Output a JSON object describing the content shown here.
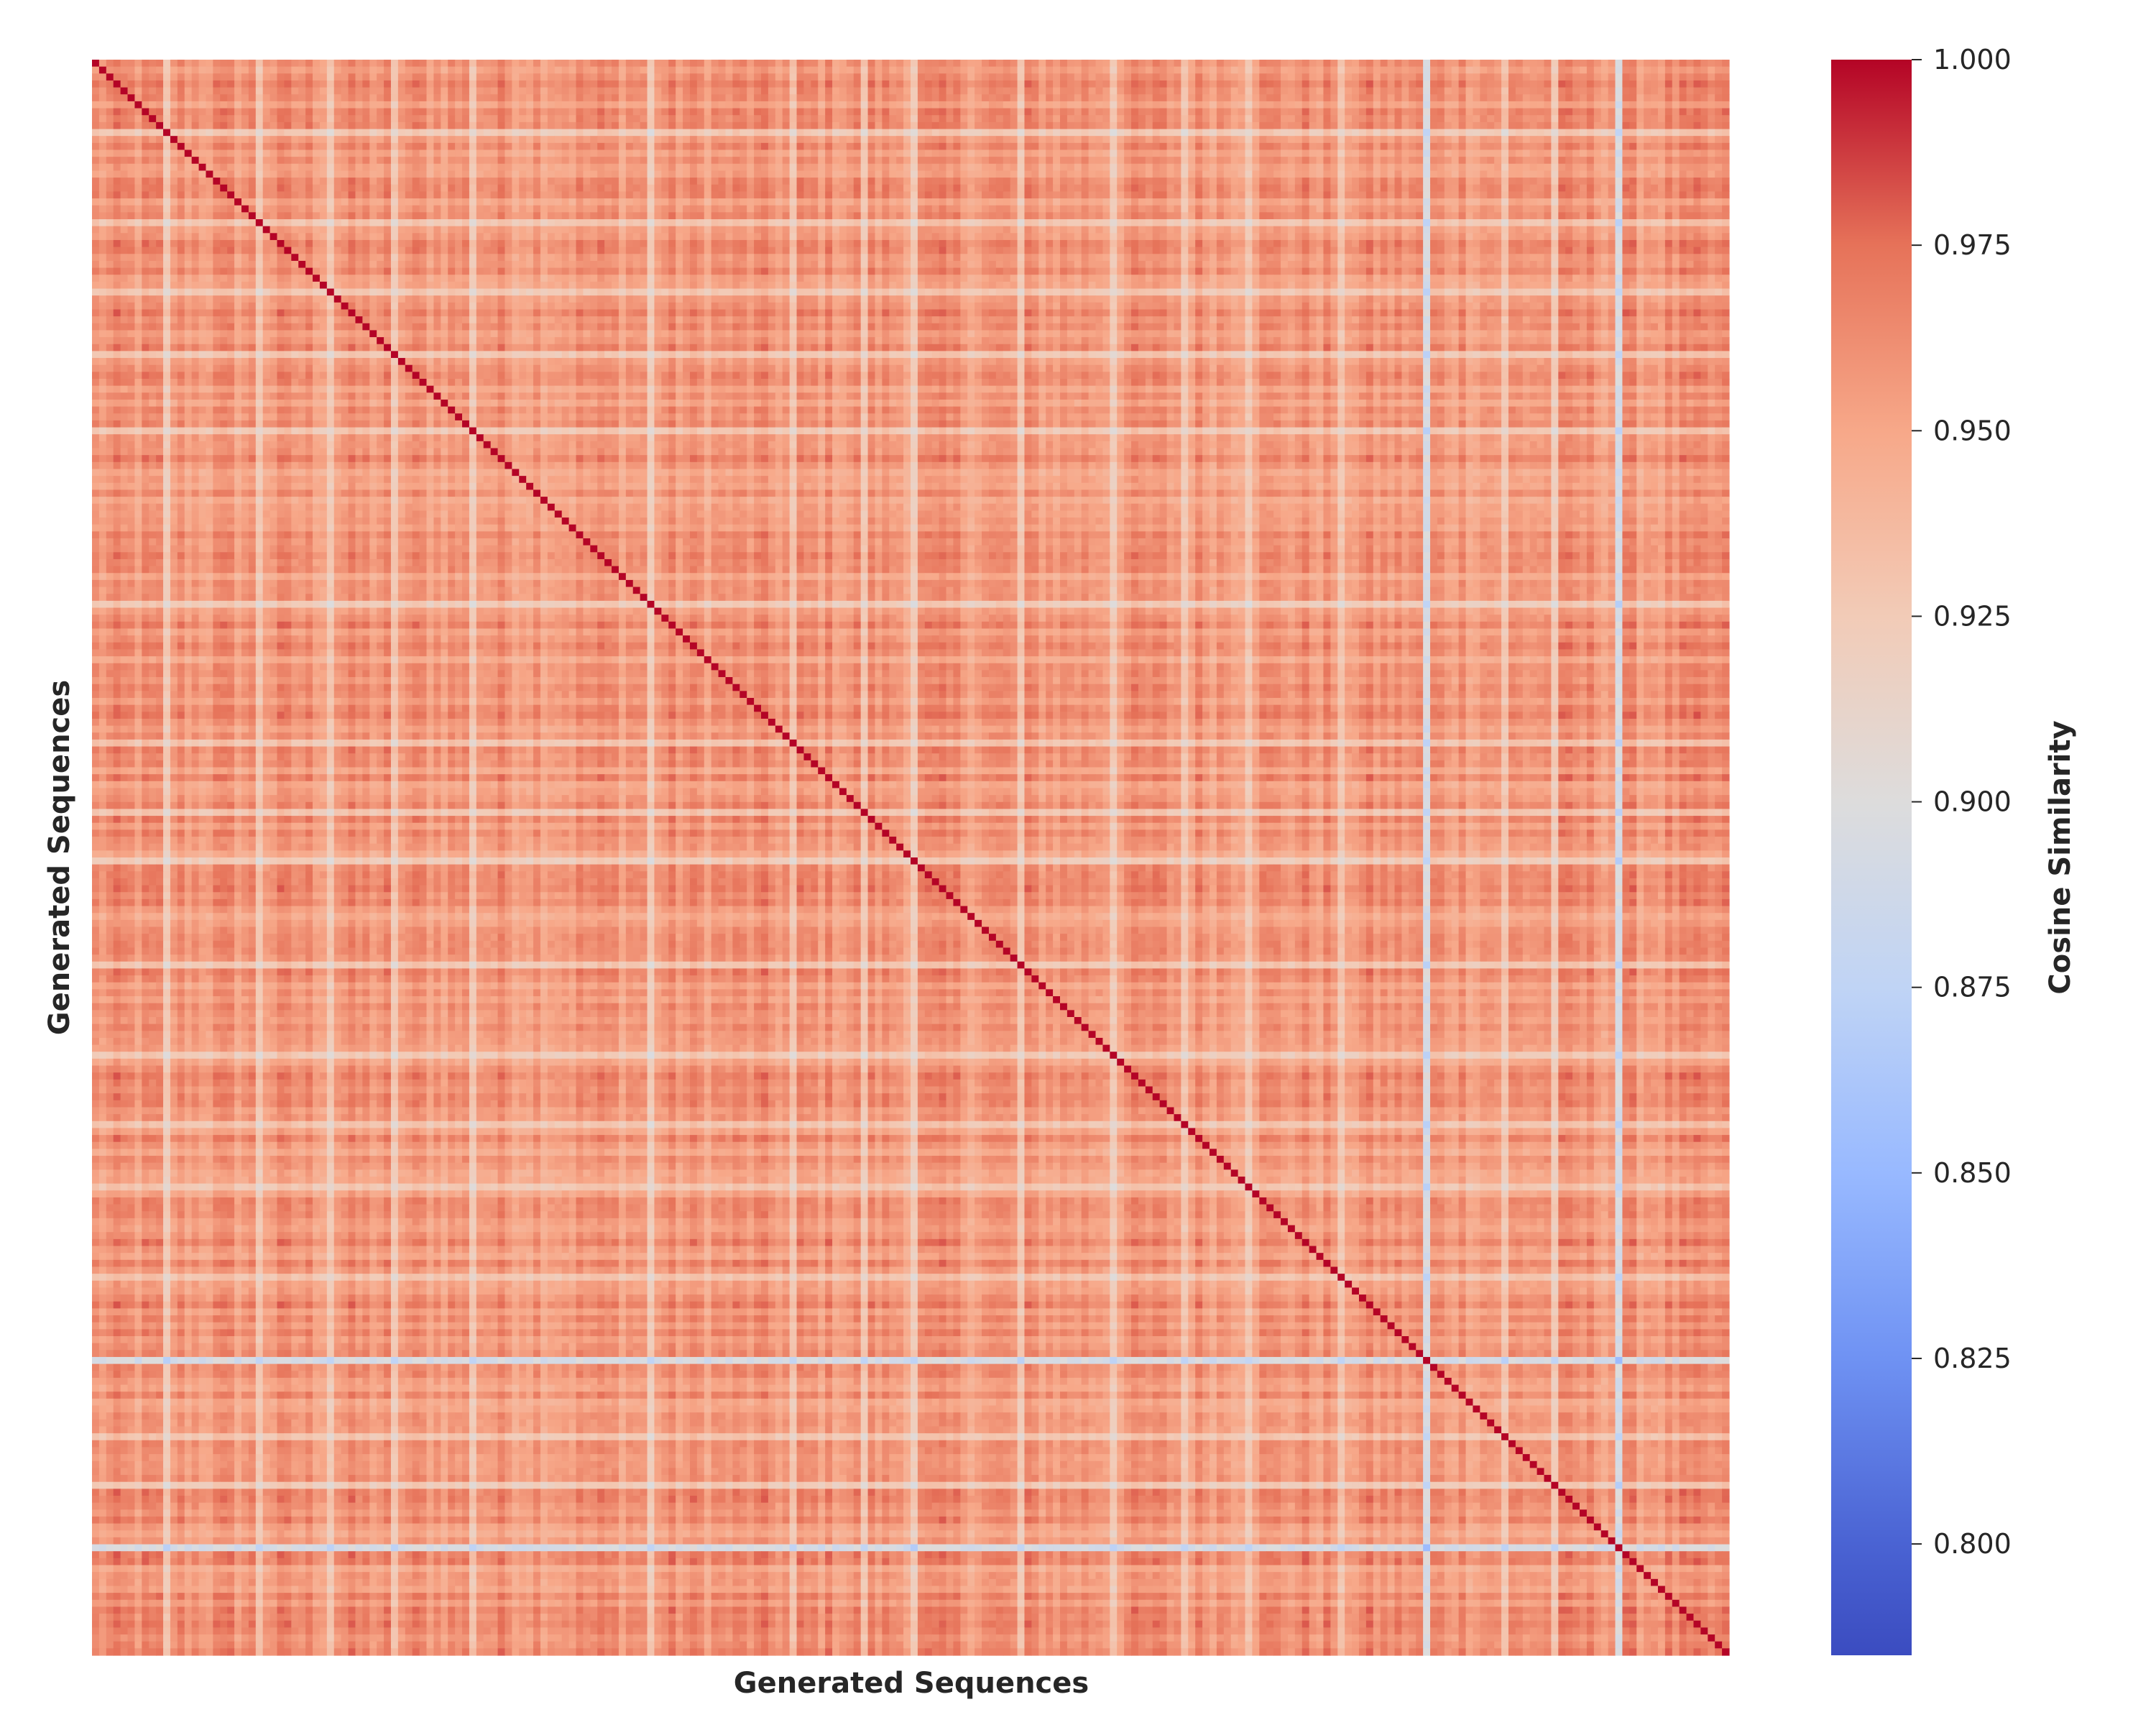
{
  "chart_data": {
    "type": "heatmap",
    "title": "",
    "xlabel": "Generated Sequences",
    "ylabel": "Generated Sequences",
    "colorbar": {
      "label": "Cosine Similarity",
      "colormap": "coolwarm",
      "vmin": 0.785,
      "vmax": 1.0,
      "ticks": [
        0.8,
        0.825,
        0.85,
        0.875,
        0.9,
        0.925,
        0.95,
        0.975,
        1.0
      ],
      "tick_labels": [
        "0.800",
        "0.825",
        "0.850",
        "0.875",
        "0.900",
        "0.925",
        "0.950",
        "0.975",
        "1.000"
      ]
    },
    "matrix_size": 230,
    "diagonal_value": 1.0,
    "typical_offdiagonal_range": [
      0.93,
      0.975
    ],
    "low_similarity_sequence_indices": [
      10,
      23,
      33,
      42,
      53,
      78,
      98,
      108,
      115,
      130,
      143,
      153,
      162,
      175,
      187,
      198,
      205,
      214
    ],
    "very_low_similarity_sequence_indices": [
      187,
      214
    ],
    "xticks_shown": false,
    "yticks_shown": false
  }
}
